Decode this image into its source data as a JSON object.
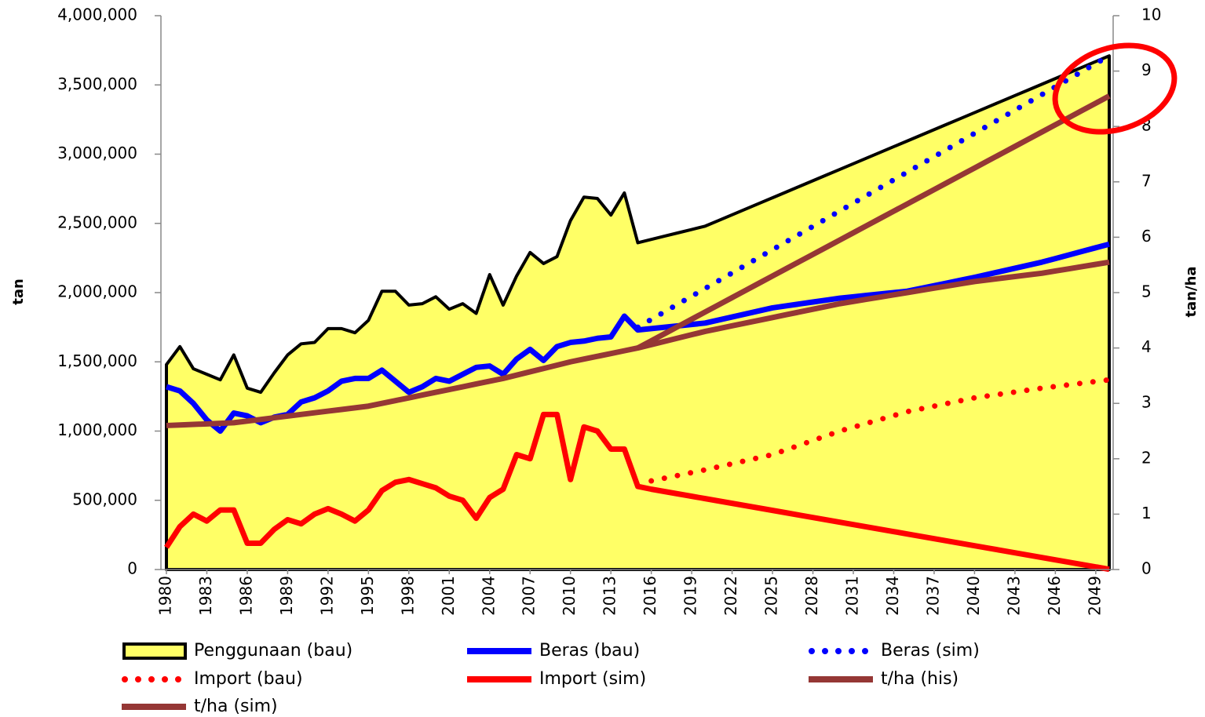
{
  "chart_data": {
    "type": "line",
    "categories": [
      "1980",
      null,
      null,
      "1983",
      null,
      null,
      "1986",
      null,
      null,
      "1989",
      null,
      null,
      "1992",
      null,
      null,
      "1995",
      null,
      null,
      "1998",
      null,
      null,
      "2001",
      null,
      null,
      "2004",
      null,
      null,
      "2007",
      null,
      null,
      "2010",
      null,
      null,
      "2013",
      null,
      null,
      "2016",
      null,
      null,
      "2019",
      null,
      null,
      "2022",
      null,
      null,
      "2025",
      null,
      null,
      "2028",
      null,
      null,
      "2031",
      null,
      null,
      "2034",
      null,
      null,
      "2037",
      null,
      null,
      "2040",
      null,
      null,
      "2043",
      null,
      null,
      "2046",
      null,
      null,
      "2049",
      null
    ],
    "y_label": "tan",
    "y2_label": "tan/ha",
    "ylim": [
      0,
      4000000
    ],
    "yticks": [
      0,
      {
        "value": 500000,
        "label": "500,000"
      },
      {
        "value": 1000000,
        "label": "1,000,000"
      },
      {
        "value": 1500000,
        "label": "1,500,000"
      },
      {
        "value": 2000000,
        "label": "2,000,000"
      },
      {
        "value": 2500000,
        "label": "2,500,000"
      },
      {
        "value": 3000000,
        "label": "3,000,000"
      },
      {
        "value": 3500000,
        "label": "3,500,000"
      },
      {
        "value": 4000000,
        "label": "4,000,000"
      }
    ],
    "y2lim": [
      0,
      10
    ],
    "y2ticks": [
      0,
      1,
      2,
      3,
      4,
      5,
      6,
      7,
      8,
      9,
      10
    ],
    "legend": "bottom",
    "series": [
      {
        "name": "Penggunaan (bau)",
        "color": "#ffff66",
        "line_style": "area",
        "values": [
          1480000,
          1610000,
          1450000,
          1410000,
          1370000,
          1550000,
          1310000,
          1280000,
          1420000,
          1550000,
          1630000,
          1640000,
          1740000,
          1740000,
          1710000,
          1800000,
          2010000,
          2010000,
          1910000,
          1920000,
          1970000,
          1880000,
          1920000,
          1850000,
          2130000,
          1910000,
          2120000,
          2290000,
          2210000,
          2260000,
          2520000,
          2690000,
          2680000,
          2560000,
          2720000,
          2360000,
          2384000,
          2408000,
          2432000,
          2456000,
          2480000,
          2521000,
          2562000,
          2603000,
          2644000,
          2685000,
          2726000,
          2767000,
          2808000,
          2849000,
          2890000,
          2931000,
          2972000,
          3013000,
          3054000,
          3095000,
          3136000,
          3177000,
          3218000,
          3259000,
          3300000,
          3341000,
          3382000,
          3423000,
          3464000,
          3505000,
          3546000,
          3587000,
          3628000,
          3669000,
          3710000
        ]
      },
      {
        "name": "Beras (bau)",
        "color": "#0000ff",
        "line_style": "solid",
        "values": [
          1320000,
          1290000,
          1200000,
          1080000,
          1000000,
          1130000,
          1110000,
          1060000,
          1100000,
          1120000,
          1210000,
          1240000,
          1290000,
          1360000,
          1380000,
          1380000,
          1440000,
          1360000,
          1280000,
          1320000,
          1380000,
          1360000,
          1410000,
          1460000,
          1470000,
          1410000,
          1520000,
          1590000,
          1510000,
          1610000,
          1640000,
          1650000,
          1670000,
          1680000,
          1830000,
          1730000,
          1740000,
          1750000,
          1760000,
          1770000,
          1780000,
          1802000,
          1824000,
          1846000,
          1868000,
          1890000,
          1904000,
          1918000,
          1932000,
          1946000,
          1960000,
          1970000,
          1980000,
          1990000,
          2000000,
          2010000,
          2030000,
          2050000,
          2070000,
          2090000,
          2110000,
          2132000,
          2154000,
          2176000,
          2198000,
          2220000,
          2246000,
          2272000,
          2298000,
          2324000,
          2350000
        ]
      },
      {
        "name": "Beras (sim)",
        "color": "#0000ff",
        "line_style": "dotted",
        "values": [
          null,
          null,
          null,
          null,
          null,
          null,
          null,
          null,
          null,
          null,
          null,
          null,
          null,
          null,
          null,
          null,
          null,
          null,
          null,
          null,
          null,
          null,
          null,
          null,
          null,
          null,
          null,
          null,
          null,
          null,
          null,
          null,
          null,
          null,
          null,
          1750000,
          1806000,
          1862000,
          1918000,
          1974000,
          2030000,
          2086000,
          2142000,
          2198000,
          2254000,
          2310000,
          2366000,
          2422000,
          2478000,
          2534000,
          2590000,
          2646000,
          2702000,
          2758000,
          2814000,
          2870000,
          2926000,
          2982000,
          3038000,
          3094000,
          3150000,
          3206000,
          3262000,
          3318000,
          3374000,
          3430000,
          3486000,
          3542000,
          3598000,
          3654000,
          3710000
        ]
      },
      {
        "name": "Import (bau)",
        "color": "#ff0000",
        "line_style": "dotted",
        "values": [
          null,
          null,
          null,
          null,
          null,
          null,
          null,
          null,
          null,
          null,
          null,
          null,
          null,
          null,
          null,
          null,
          null,
          null,
          null,
          null,
          null,
          null,
          null,
          null,
          null,
          null,
          null,
          null,
          null,
          null,
          null,
          null,
          null,
          null,
          null,
          null,
          640000,
          660000,
          680000,
          700000,
          720000,
          742000,
          764000,
          786000,
          808000,
          830000,
          864000,
          898000,
          932000,
          966000,
          1000000,
          1028000,
          1056000,
          1084000,
          1112000,
          1140000,
          1160000,
          1180000,
          1200000,
          1220000,
          1240000,
          1254000,
          1268000,
          1282000,
          1296000,
          1310000,
          1322000,
          1334000,
          1346000,
          1358000,
          1370000
        ]
      },
      {
        "name": "Import (sim)",
        "color": "#ff0000",
        "line_style": "solid",
        "values": [
          160000,
          310000,
          400000,
          350000,
          430000,
          430000,
          190000,
          190000,
          290000,
          360000,
          330000,
          400000,
          440000,
          400000,
          350000,
          430000,
          570000,
          630000,
          650000,
          620000,
          590000,
          530000,
          500000,
          370000,
          520000,
          580000,
          830000,
          800000,
          1120000,
          1120000,
          650000,
          1030000,
          1000000,
          870000,
          870000,
          600000,
          580000,
          563000,
          546000,
          529000,
          512000,
          495000,
          478000,
          461000,
          444000,
          427000,
          410000,
          393000,
          376000,
          359000,
          342000,
          325000,
          308000,
          291000,
          274000,
          257000,
          240000,
          223000,
          206000,
          189000,
          172000,
          155000,
          138000,
          121000,
          104000,
          87000,
          70000,
          53000,
          36000,
          19000,
          2000
        ]
      },
      {
        "name": "t/ha (his)",
        "color": "#953735",
        "line_style": "solid",
        "axis": "y2",
        "values": [
          2.6,
          2.61,
          2.62,
          2.63,
          2.64,
          2.65,
          2.68,
          2.71,
          2.74,
          2.77,
          2.8,
          2.83,
          2.86,
          2.89,
          2.92,
          2.95,
          3.0,
          3.05,
          3.1,
          3.15,
          3.2,
          3.25,
          3.3,
          3.35,
          3.4,
          3.45,
          3.51,
          3.57,
          3.63,
          3.69,
          3.75,
          3.8,
          3.85,
          3.9,
          3.95,
          4.0,
          4.06,
          4.12,
          4.18,
          4.24,
          4.3,
          4.35,
          4.4,
          4.45,
          4.5,
          4.55,
          4.6,
          4.65,
          4.7,
          4.75,
          4.8,
          4.84,
          4.88,
          4.92,
          4.96,
          5.0,
          5.04,
          5.08,
          5.12,
          5.16,
          5.2,
          5.23,
          5.26,
          5.29,
          5.32,
          5.35,
          5.39,
          5.43,
          5.47,
          5.51,
          5.55
        ]
      },
      {
        "name": "t/ha (sim)",
        "color": "#953735",
        "line_style": "solid",
        "axis": "y2",
        "values": [
          null,
          null,
          null,
          null,
          null,
          null,
          null,
          null,
          null,
          null,
          null,
          null,
          null,
          null,
          null,
          null,
          null,
          null,
          null,
          null,
          null,
          null,
          null,
          null,
          null,
          null,
          null,
          null,
          null,
          null,
          null,
          null,
          null,
          null,
          null,
          4.0,
          4.13,
          4.26,
          4.39,
          4.52,
          4.65,
          4.78,
          4.91,
          5.04,
          5.17,
          5.3,
          5.43,
          5.56,
          5.69,
          5.82,
          5.95,
          6.08,
          6.21,
          6.34,
          6.47,
          6.6,
          6.73,
          6.86,
          6.99,
          7.12,
          7.25,
          7.38,
          7.51,
          7.64,
          7.77,
          7.9,
          8.03,
          8.16,
          8.29,
          8.42,
          8.55
        ]
      }
    ]
  }
}
